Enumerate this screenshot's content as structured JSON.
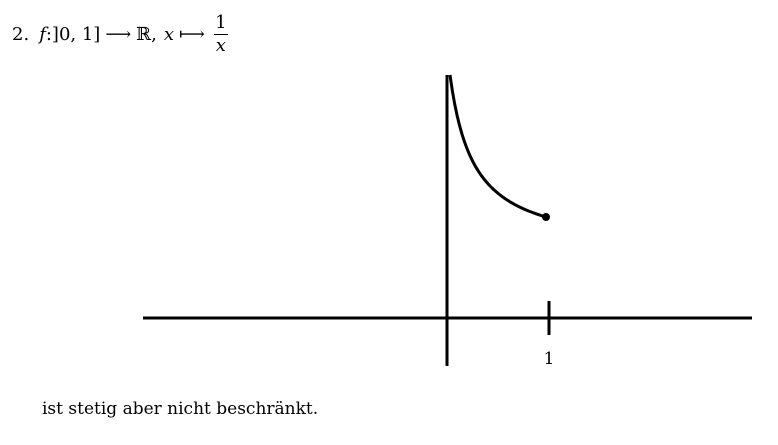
{
  "item": {
    "number": "2.",
    "function_name": "f",
    "domain_part": ":]0, 1]",
    "arrow": "⟶",
    "codomain": "ℝ",
    "separator": ",",
    "variable": "x",
    "mapsto": "⟼",
    "numerator": "1",
    "denominator": "x"
  },
  "chart_data": {
    "type": "line",
    "title": "",
    "xlabel": "",
    "ylabel": "",
    "x_tick_labels": [
      "1"
    ],
    "series": [
      {
        "function": "1/x",
        "x_domain": [
          0,
          1
        ],
        "left_open": true,
        "right_endpoint_filled": true
      }
    ],
    "grid": false,
    "legend": "none"
  },
  "caption": "ist stetig aber nicht beschränkt."
}
